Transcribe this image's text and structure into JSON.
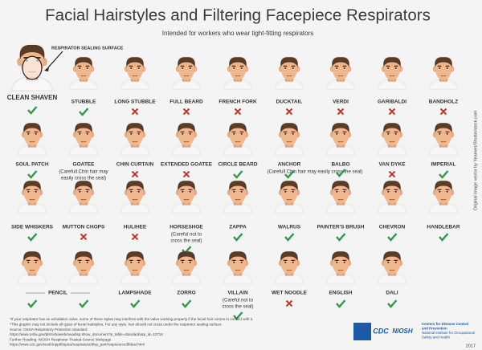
{
  "header": {
    "title": "Facial Hairstyles and Filtering Facepiece Respirators",
    "subtitle": "Intended for workers who wear tight-fitting respirators"
  },
  "sealing_label": "RESPIRATOR SEALING SURFACE",
  "rows": [
    [
      {
        "name": "CLEAN SHAVEN",
        "ok": [
          true
        ]
      },
      {
        "name": "STUBBLE",
        "ok": [
          true
        ]
      },
      {
        "name": "LONG STUBBLE",
        "ok": [
          false
        ]
      },
      {
        "name": "FULL BEARD",
        "ok": [
          false
        ]
      },
      {
        "name": "FRENCH FORK",
        "ok": [
          false
        ]
      },
      {
        "name": "DUCKTAIL",
        "ok": [
          false
        ]
      },
      {
        "name": "VERDI",
        "ok": [
          false
        ]
      },
      {
        "name": "GARIBALDI",
        "ok": [
          false
        ]
      },
      {
        "name": "BANDHOLZ",
        "ok": [
          false
        ]
      }
    ],
    [
      {
        "name": "SOUL PATCH",
        "ok": [
          true
        ]
      },
      {
        "name": "GOATEE",
        "ok": [
          true
        ],
        "note": [
          "(Carefull Chin hair may",
          "easily cross the seal)"
        ]
      },
      {
        "name": "CHIN CURTAIN",
        "ok": [
          false
        ]
      },
      {
        "name": "EXTENDED GOATEE",
        "ok": [
          false
        ]
      },
      {
        "name": "CIRCLE BEARD",
        "ok": [
          true
        ]
      },
      {
        "name": "ANCHOR",
        "ok": [
          true
        ]
      },
      {
        "name": "BALBO",
        "ok": [
          true
        ],
        "note": [
          "(Carefull Chin hair may easily cross the seal)"
        ]
      },
      {
        "name": "VAN DYKE",
        "ok": [
          false
        ]
      },
      {
        "name": "IMPERIAL",
        "ok": [
          true
        ]
      }
    ],
    [
      {
        "name": "SIDE WHISKERS",
        "ok": [
          true
        ]
      },
      {
        "name": "MUTTON CHOPS",
        "ok": [
          false
        ]
      },
      {
        "name": "HULIHEE",
        "ok": [
          false
        ]
      },
      {
        "name": "HORSESHOE",
        "ok": [
          true
        ],
        "note": [
          "(Careful not to",
          "cross the seal)"
        ]
      },
      {
        "name": "ZAPPA",
        "ok": [
          true
        ]
      },
      {
        "name": "WALRUS",
        "ok": [
          true
        ]
      },
      {
        "name": "PAINTER'S BRUSH",
        "ok": [
          true
        ]
      },
      {
        "name": "CHEVRON",
        "ok": [
          true
        ]
      },
      {
        "name": "HANDLEBAR",
        "ok": [
          true
        ]
      }
    ],
    [
      {
        "name": "PENCIL",
        "ok": [
          true,
          true
        ]
      },
      {
        "name": "LAMPSHADE",
        "ok": [
          true
        ]
      },
      {
        "name": "ZORRO",
        "ok": [
          true
        ]
      },
      {
        "name": "VILLAIN",
        "ok": [
          true
        ],
        "note": [
          "(Careful not to",
          "cross the seal)"
        ]
      },
      {
        "name": "WET NOODLE",
        "ok": [
          false
        ]
      },
      {
        "name": "ENGLISH",
        "ok": [
          true
        ]
      },
      {
        "name": "DALI",
        "ok": [
          true
        ]
      }
    ]
  ],
  "footnotes": [
    "*If your respirator has an exhalation valve, some of these styles may interfere with the valve working properly if the facial hair comes in contact with it.",
    "*This graphic may not include all types of facial hairstyles. For any style, hair should not cross under the respirator sealing surface.",
    "Source: OSHA Respiratory Protection Standard",
    "https://www.osha.gov/pls/oshaweb/owadisp.show_document?p_table=standards&p_id=12716",
    "Further Reading: NIOSH Respirator Trusted-Source Webpage",
    "https://www.cdc.gov/niosh/npptl/topics/respirators/disp_part/respsource3fittest.html"
  ],
  "credit": "Original image vector by Yeamen/Shutterstock.com",
  "logo": {
    "cdc": "CDC",
    "niosh": "NIOSH",
    "lines": [
      "Centers for Disease Control",
      "and Prevention",
      "National Institute for Occupational",
      "Safety and Health"
    ]
  },
  "year": "2017"
}
